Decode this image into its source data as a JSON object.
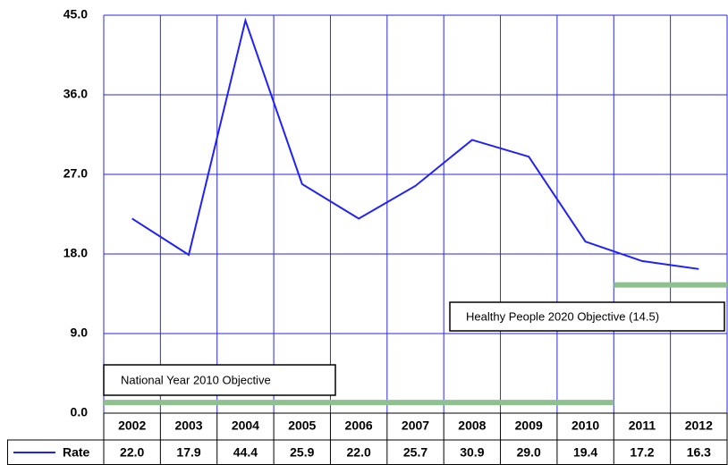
{
  "chart_data": {
    "type": "line",
    "categories": [
      "2002",
      "2003",
      "2004",
      "2005",
      "2006",
      "2007",
      "2008",
      "2009",
      "2010",
      "2011",
      "2012"
    ],
    "series": [
      {
        "name": "Rate",
        "color": "#2020ff",
        "values": [
          22.0,
          17.9,
          44.4,
          25.9,
          22.0,
          25.7,
          30.9,
          29.0,
          19.4,
          17.2,
          16.3
        ],
        "value_labels": [
          "22.0",
          "17.9",
          "44.4",
          "25.9",
          "22.0",
          "25.7",
          "30.9",
          "29.0",
          "19.4",
          "17.2",
          "16.3"
        ]
      }
    ],
    "ylim": [
      0,
      45
    ],
    "yticks": [
      {
        "value": 0,
        "label": "0.0"
      },
      {
        "value": 9,
        "label": "9.0"
      },
      {
        "value": 18,
        "label": "18.0"
      },
      {
        "value": 27,
        "label": "27.0"
      },
      {
        "value": 36,
        "label": "36.0"
      },
      {
        "value": 45,
        "label": "45.0"
      }
    ],
    "grid": true,
    "objectives": [
      {
        "label": "National Year 2010 Objective",
        "value": 1.2,
        "start": "2002",
        "end": "2010",
        "color": "#8fc08f"
      },
      {
        "label": "Healthy People 2020 Objective (14.5)",
        "value": 14.5,
        "start": "2011",
        "end": "2012",
        "color": "#8fc08f"
      }
    ]
  }
}
